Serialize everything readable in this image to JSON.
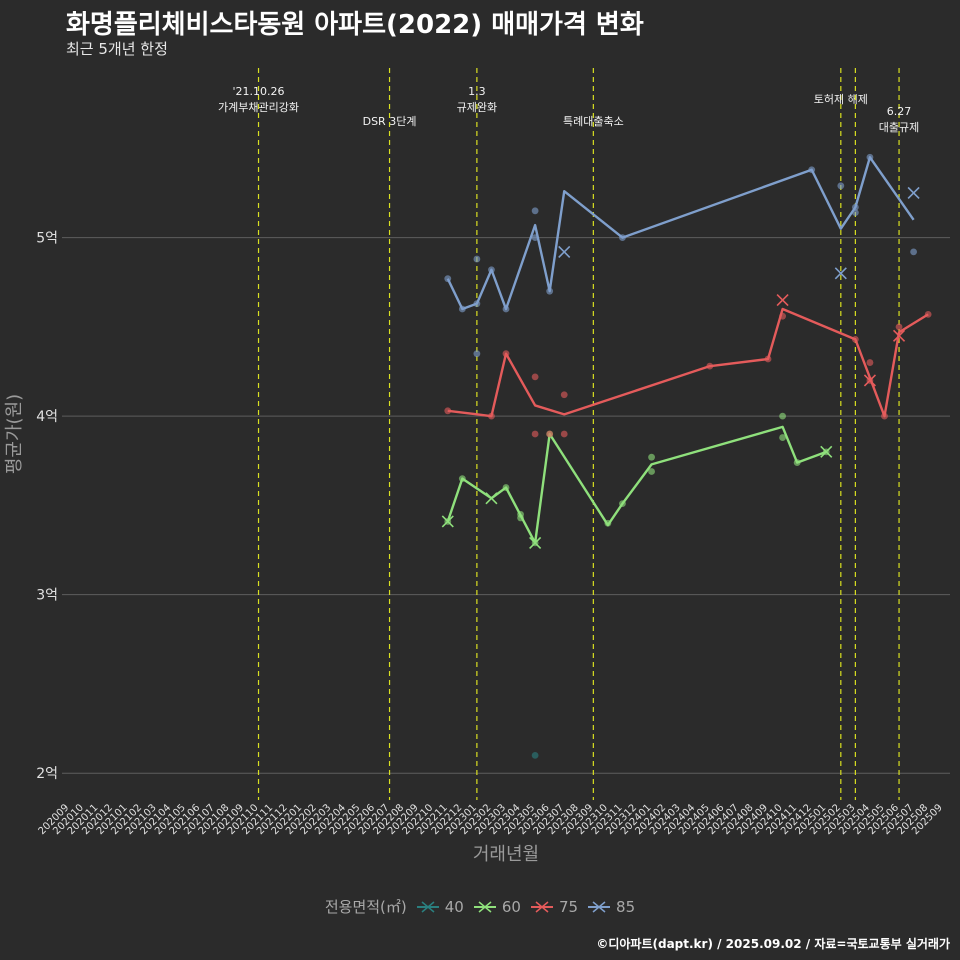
{
  "title": "화명플리체비스타동원 아파트(2022) 매매가격 변화",
  "subtitle": "최근 5개년 한정",
  "caption": "©디아파트(dapt.kr) / 2025.09.02 / 자료=국토교통부 실거래가",
  "colors": {
    "background": "#2b2b2b",
    "grid": "#5e5e5e",
    "vline": "#d9e021",
    "axis_text": "#e0e0e0",
    "axis_title": "#9a9a9a"
  },
  "chart_data": {
    "type": "line",
    "xlabel": "거래년월",
    "ylabel": "평균가(원)",
    "ylim": [
      1.85,
      5.95
    ],
    "yticks": [
      {
        "v": 2,
        "label": "2억"
      },
      {
        "v": 3,
        "label": "3억"
      },
      {
        "v": 4,
        "label": "4억"
      },
      {
        "v": 5,
        "label": "5억"
      }
    ],
    "x_months": [
      "202009",
      "202010",
      "202011",
      "202012",
      "202101",
      "202102",
      "202103",
      "202104",
      "202105",
      "202106",
      "202107",
      "202108",
      "202109",
      "202110",
      "202111",
      "202112",
      "202201",
      "202202",
      "202203",
      "202204",
      "202205",
      "202206",
      "202207",
      "202208",
      "202209",
      "202210",
      "202211",
      "202212",
      "202301",
      "202302",
      "202303",
      "202304",
      "202305",
      "202306",
      "202307",
      "202308",
      "202309",
      "202310",
      "202311",
      "202312",
      "202401",
      "202402",
      "202403",
      "202404",
      "202405",
      "202406",
      "202407",
      "202408",
      "202409",
      "202410",
      "202411",
      "202412",
      "202501",
      "202502",
      "202503",
      "202504",
      "202505",
      "202506",
      "202507",
      "202508",
      "202509"
    ],
    "legend_title": "전용면적(㎡)",
    "events": [
      {
        "x": "202110",
        "label": [
          "'21.10.26",
          "가계부채관리강화"
        ],
        "row": 0
      },
      {
        "x": "202207",
        "label": [
          "DSR 3단계"
        ],
        "row": 2
      },
      {
        "x": "202301",
        "label": [
          "1.3",
          "규제완화"
        ],
        "row": 0
      },
      {
        "x": "202309",
        "label": [
          "특례대출축소"
        ],
        "row": 2
      },
      {
        "x": "202502",
        "label": [
          "토허제 해제"
        ],
        "row": 1
      },
      {
        "x": "202503",
        "label": [],
        "row": 1
      },
      {
        "x": "202506",
        "label": [
          "6.27",
          "대출규제"
        ],
        "row": 1.5
      }
    ],
    "series": [
      {
        "name": "40",
        "color": "#2a7f7f",
        "line": [],
        "points": [
          [
            32,
            2.1
          ]
        ],
        "crosses": []
      },
      {
        "name": "60",
        "color": "#8fe07c",
        "line": [
          [
            26,
            3.41
          ],
          [
            27,
            3.65
          ],
          [
            29,
            3.54
          ],
          [
            30,
            3.6
          ],
          [
            32,
            3.29
          ],
          [
            33,
            3.9
          ],
          [
            37,
            3.39
          ],
          [
            38,
            3.51
          ],
          [
            40,
            3.73
          ],
          [
            49,
            3.94
          ],
          [
            50,
            3.74
          ],
          [
            52,
            3.8
          ]
        ],
        "points": [
          [
            26,
            3.41
          ],
          [
            27,
            3.65
          ],
          [
            30,
            3.6
          ],
          [
            31,
            3.43
          ],
          [
            31,
            3.45
          ],
          [
            32,
            3.29
          ],
          [
            33,
            3.9
          ],
          [
            37,
            3.4
          ],
          [
            38,
            3.51
          ],
          [
            40,
            3.69
          ],
          [
            40,
            3.77
          ],
          [
            49,
            4.0
          ],
          [
            49,
            3.88
          ],
          [
            50,
            3.74
          ],
          [
            52,
            3.8
          ]
        ],
        "crosses": [
          [
            26,
            3.41
          ],
          [
            29,
            3.54
          ],
          [
            32,
            3.29
          ],
          [
            52,
            3.8
          ]
        ]
      },
      {
        "name": "75",
        "color": "#e45b5b",
        "line": [
          [
            26,
            4.03
          ],
          [
            28,
            4.01
          ],
          [
            29,
            4.0
          ],
          [
            30,
            4.35
          ],
          [
            32,
            4.06
          ],
          [
            34,
            4.01
          ],
          [
            44,
            4.28
          ],
          [
            48,
            4.32
          ],
          [
            49,
            4.6
          ],
          [
            54,
            4.43
          ],
          [
            56,
            4.0
          ],
          [
            57,
            4.47
          ],
          [
            59,
            4.57
          ]
        ],
        "points": [
          [
            26,
            4.03
          ],
          [
            29,
            4.0
          ],
          [
            30,
            4.35
          ],
          [
            32,
            4.22
          ],
          [
            32,
            3.9
          ],
          [
            33,
            3.9
          ],
          [
            34,
            4.12
          ],
          [
            34,
            3.9
          ],
          [
            44,
            4.28
          ],
          [
            48,
            4.32
          ],
          [
            49,
            4.56
          ],
          [
            54,
            4.43
          ],
          [
            55,
            4.3
          ],
          [
            55,
            4.2
          ],
          [
            56,
            4.0
          ],
          [
            57,
            4.5
          ],
          [
            59,
            4.57
          ]
        ],
        "crosses": [
          [
            49,
            4.65
          ],
          [
            55,
            4.2
          ],
          [
            57,
            4.45
          ]
        ]
      },
      {
        "name": "85",
        "color": "#7f9fcc",
        "line": [
          [
            26,
            4.77
          ],
          [
            27,
            4.6
          ],
          [
            28,
            4.63
          ],
          [
            29,
            4.82
          ],
          [
            30,
            4.6
          ],
          [
            32,
            5.07
          ],
          [
            33,
            4.7
          ],
          [
            34,
            5.26
          ],
          [
            38,
            5.0
          ],
          [
            51,
            5.38
          ],
          [
            53,
            5.05
          ],
          [
            54,
            5.17
          ],
          [
            55,
            5.45
          ],
          [
            58,
            5.1
          ]
        ],
        "points": [
          [
            26,
            4.77
          ],
          [
            27,
            4.6
          ],
          [
            28,
            4.35
          ],
          [
            28,
            4.88
          ],
          [
            28,
            4.63
          ],
          [
            29,
            4.82
          ],
          [
            30,
            4.6
          ],
          [
            32,
            5.15
          ],
          [
            32,
            5.0
          ],
          [
            33,
            4.7
          ],
          [
            38,
            5.0
          ],
          [
            51,
            5.38
          ],
          [
            53,
            5.29
          ],
          [
            54,
            5.17
          ],
          [
            54,
            5.14
          ],
          [
            55,
            5.45
          ],
          [
            58,
            4.92
          ]
        ],
        "crosses": [
          [
            34,
            4.92
          ],
          [
            53,
            4.8
          ],
          [
            58,
            5.25
          ]
        ]
      }
    ]
  }
}
